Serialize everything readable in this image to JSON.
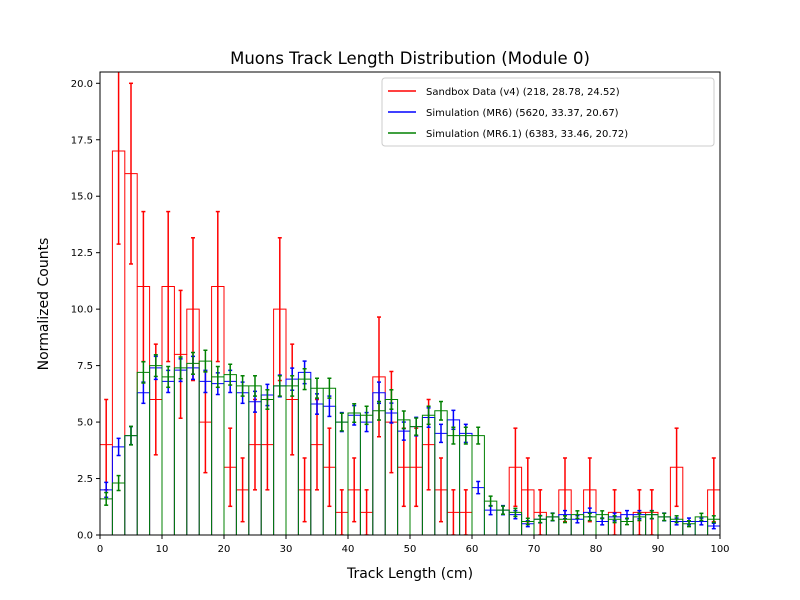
{
  "chart_data": {
    "type": "histogram",
    "title": "Muons Track Length Distribution (Module 0)",
    "xlabel": "Track Length (cm)",
    "ylabel": "Normalized Counts",
    "xlim": [
      0,
      100
    ],
    "ylim": [
      0,
      20.5
    ],
    "xticks": [
      "0",
      "10",
      "20",
      "30",
      "40",
      "50",
      "60",
      "70",
      "80",
      "90",
      "100"
    ],
    "yticks": [
      "0.0",
      "2.5",
      "5.0",
      "7.5",
      "10.0",
      "12.5",
      "15.0",
      "17.5",
      "20.0"
    ],
    "grid": false,
    "legend_position": "top-right",
    "bin_edges": [
      0,
      2,
      4,
      6,
      8,
      10,
      12,
      14,
      16,
      18,
      20,
      22,
      24,
      26,
      28,
      30,
      32,
      34,
      36,
      38,
      40,
      42,
      44,
      46,
      48,
      50,
      52,
      54,
      56,
      58,
      60,
      62,
      64,
      66,
      68,
      70,
      72,
      74,
      76,
      78,
      80,
      82,
      84,
      86,
      88,
      90,
      92,
      94,
      96,
      98,
      100
    ],
    "series": [
      {
        "name": "Sandbox Data (v4) (218, 28.78, 24.52)",
        "color": "#ff0000",
        "values": [
          4,
          17,
          16,
          11,
          6,
          11,
          8,
          10,
          5,
          11,
          3,
          2,
          4,
          4,
          10,
          6,
          2,
          4,
          3,
          1,
          2,
          1,
          7,
          5,
          3,
          3,
          4,
          2,
          1,
          1,
          0,
          0,
          0,
          3,
          2,
          1,
          0,
          2,
          0,
          2,
          0,
          1,
          0,
          1,
          1,
          0,
          3,
          0,
          0,
          2
        ],
        "errors": [
          2,
          4.12,
          4,
          3.32,
          2.45,
          3.32,
          2.83,
          3.16,
          2.24,
          3.32,
          1.73,
          1.41,
          2,
          2,
          3.16,
          2.45,
          1.41,
          2,
          1.73,
          1,
          1.41,
          1,
          2.65,
          2.24,
          1.73,
          1.73,
          2,
          1.41,
          1,
          1,
          0,
          0,
          0,
          1.73,
          1.41,
          1,
          0,
          1.41,
          0,
          1.41,
          0,
          1,
          0,
          1,
          1,
          0,
          1.73,
          0,
          0,
          1.41
        ]
      },
      {
        "name": "Simulation (MR6) (5620, 33.37, 20.67)",
        "color": "#0000ff",
        "values": [
          2.0,
          3.9,
          4.4,
          6.3,
          7.4,
          6.8,
          7.3,
          7.4,
          6.8,
          6.7,
          6.8,
          6.3,
          5.9,
          6.2,
          6.6,
          6.9,
          7.2,
          5.8,
          5.7,
          5.0,
          5.3,
          5.0,
          6.3,
          5.4,
          4.6,
          4.8,
          5.2,
          4.5,
          5.1,
          4.5,
          2.1,
          1.1,
          1.1,
          0.9,
          0.5,
          0.7,
          0.8,
          0.9,
          0.7,
          1.0,
          0.6,
          0.8,
          0.9,
          0.9,
          0.9,
          0.8,
          0.6,
          0.6,
          0.6,
          0.4
        ],
        "errors": [
          0.33,
          0.38,
          0.4,
          0.47,
          0.51,
          0.49,
          0.5,
          0.51,
          0.49,
          0.48,
          0.49,
          0.47,
          0.46,
          0.47,
          0.48,
          0.49,
          0.5,
          0.45,
          0.45,
          0.42,
          0.43,
          0.42,
          0.47,
          0.44,
          0.4,
          0.41,
          0.43,
          0.4,
          0.42,
          0.4,
          0.27,
          0.2,
          0.2,
          0.18,
          0.13,
          0.16,
          0.17,
          0.18,
          0.16,
          0.19,
          0.15,
          0.17,
          0.18,
          0.18,
          0.18,
          0.17,
          0.15,
          0.15,
          0.15,
          0.12
        ]
      },
      {
        "name": "Simulation (MR6.1) (6383, 33.46, 20.72)",
        "color": "#008000",
        "values": [
          1.6,
          2.3,
          4.4,
          7.2,
          7.5,
          7.0,
          7.4,
          7.6,
          7.7,
          7.0,
          7.1,
          6.6,
          6.6,
          6.0,
          6.6,
          6.6,
          6.9,
          6.5,
          6.5,
          5.0,
          5.4,
          5.3,
          5.5,
          6.0,
          5.1,
          4.8,
          5.3,
          5.5,
          4.4,
          4.4,
          4.4,
          1.5,
          1.1,
          1.0,
          0.6,
          0.7,
          0.8,
          0.7,
          0.9,
          0.8,
          0.9,
          0.7,
          0.6,
          0.8,
          0.9,
          0.8,
          0.7,
          0.5,
          0.8,
          0.7
        ],
        "errors": [
          0.28,
          0.33,
          0.41,
          0.47,
          0.48,
          0.46,
          0.48,
          0.48,
          0.48,
          0.46,
          0.46,
          0.45,
          0.45,
          0.43,
          0.45,
          0.45,
          0.46,
          0.44,
          0.44,
          0.39,
          0.41,
          0.4,
          0.41,
          0.43,
          0.39,
          0.38,
          0.4,
          0.41,
          0.37,
          0.37,
          0.37,
          0.22,
          0.18,
          0.18,
          0.14,
          0.15,
          0.16,
          0.15,
          0.17,
          0.16,
          0.17,
          0.15,
          0.14,
          0.16,
          0.17,
          0.16,
          0.15,
          0.13,
          0.16,
          0.15
        ]
      }
    ]
  }
}
